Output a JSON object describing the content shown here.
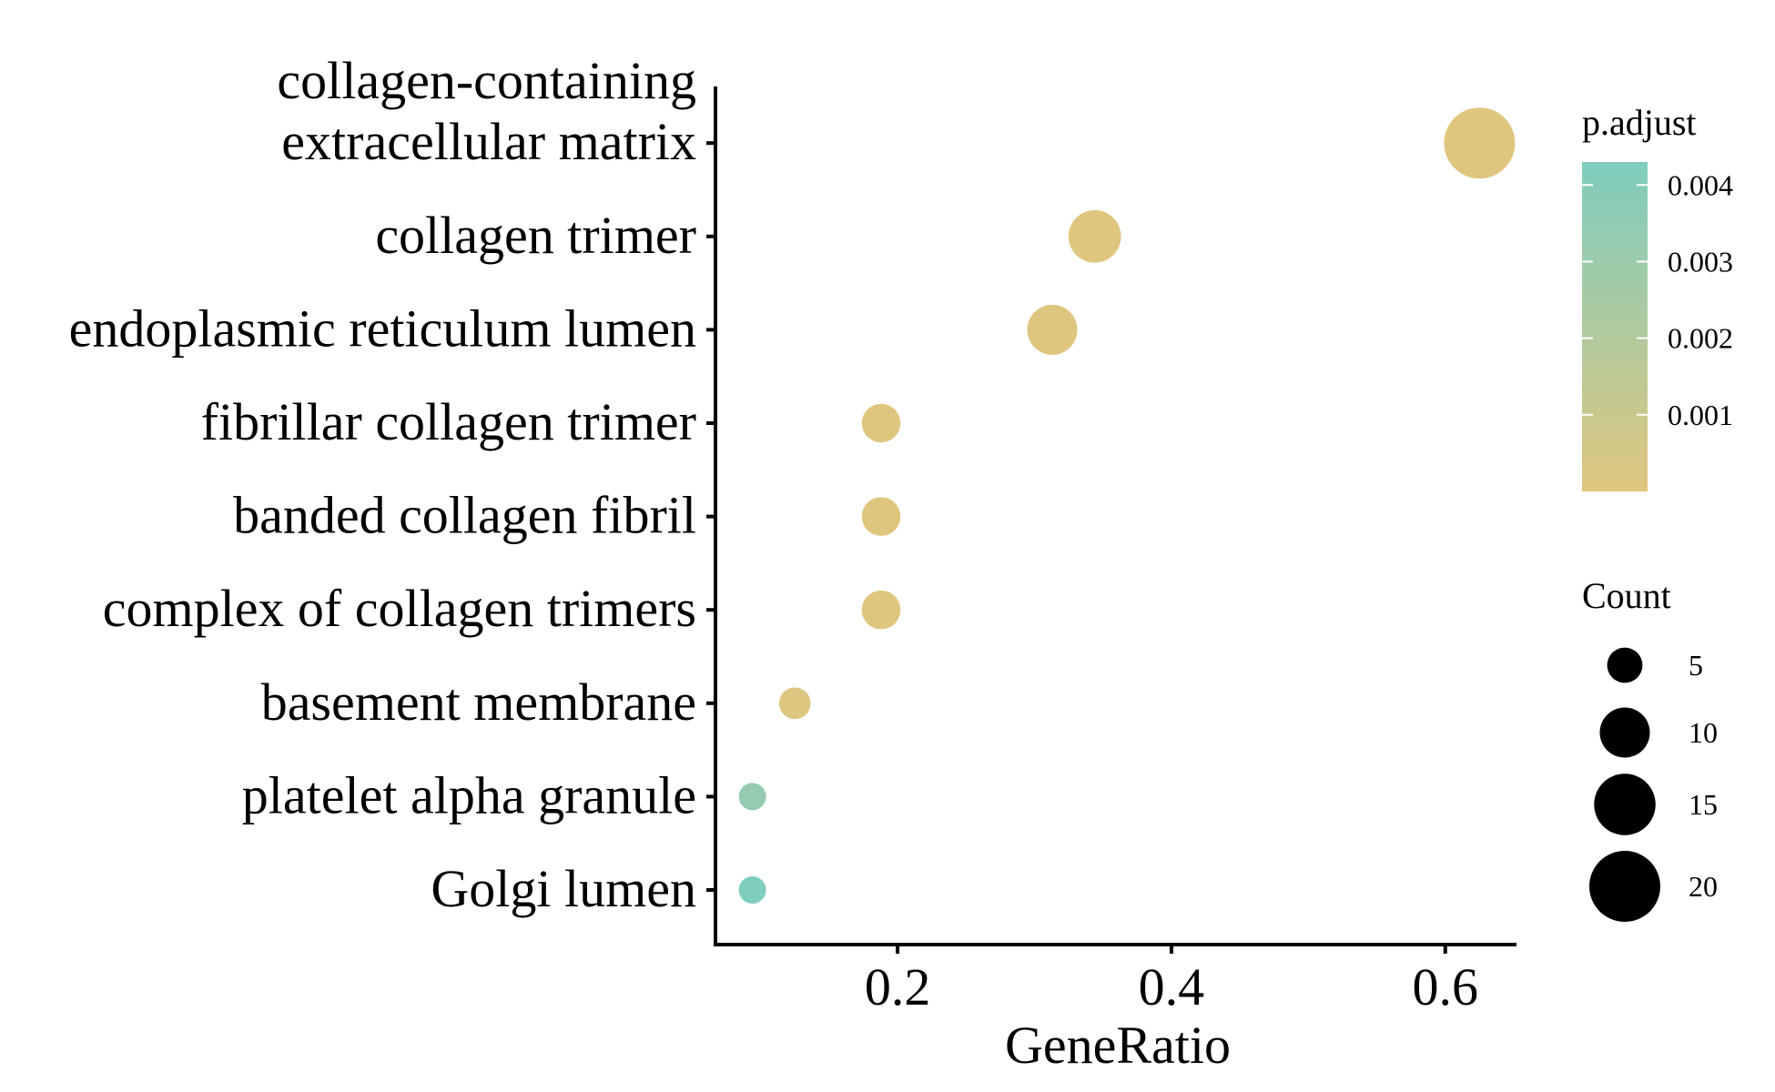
{
  "chart_data": {
    "type": "scatter",
    "title": "",
    "xlabel": "GeneRatio",
    "ylabel": "",
    "xlim": [
      0.067,
      0.652
    ],
    "xticks": [
      "0.2",
      "0.4",
      "0.6"
    ],
    "categories": [
      "Golgi lumen",
      "platelet alpha granule",
      "basement membrane",
      "complex of collagen trimers",
      "banded collagen fibril",
      "fibrillar collagen trimer",
      "endoplasmic reticulum lumen",
      "collagen trimer",
      "collagen-containing extracellular matrix"
    ],
    "category_lines": [
      [
        "Golgi lumen"
      ],
      [
        "platelet alpha granule"
      ],
      [
        "basement membrane"
      ],
      [
        "complex of collagen trimers"
      ],
      [
        "banded collagen fibril"
      ],
      [
        "fibrillar collagen trimer"
      ],
      [
        "endoplasmic reticulum lumen"
      ],
      [
        "collagen trimer"
      ],
      [
        "collagen-containing",
        "extracellular matrix"
      ]
    ],
    "points": [
      {
        "term": "Golgi lumen",
        "gene_ratio": 0.094,
        "count": 3,
        "p_adjust": 0.0043
      },
      {
        "term": "platelet alpha granule",
        "gene_ratio": 0.094,
        "count": 3,
        "p_adjust": 0.0033
      },
      {
        "term": "basement membrane",
        "gene_ratio": 0.125,
        "count": 4,
        "p_adjust": 0.00015
      },
      {
        "term": "complex of collagen trimers",
        "gene_ratio": 0.188,
        "count": 6,
        "p_adjust": 2e-05
      },
      {
        "term": "banded collagen fibril",
        "gene_ratio": 0.188,
        "count": 6,
        "p_adjust": 2e-05
      },
      {
        "term": "fibrillar collagen trimer",
        "gene_ratio": 0.188,
        "count": 6,
        "p_adjust": 2e-05
      },
      {
        "term": "endoplasmic reticulum lumen",
        "gene_ratio": 0.313,
        "count": 10,
        "p_adjust": 1e-05
      },
      {
        "term": "collagen trimer",
        "gene_ratio": 0.344,
        "count": 11,
        "p_adjust": 0.0
      },
      {
        "term": "collagen-containing extracellular matrix",
        "gene_ratio": 0.625,
        "count": 20,
        "p_adjust": 0.0
      }
    ],
    "color_legend": {
      "title": "p.adjust",
      "ticks": [
        "0.004",
        "0.003",
        "0.002",
        "0.001"
      ],
      "tick_values": [
        0.004,
        0.003,
        0.002,
        0.001
      ],
      "range": [
        0.0,
        0.0043
      ],
      "low_color": "#DFC67E",
      "high_color": "#7ECDBE"
    },
    "size_legend": {
      "title": "Count",
      "labels": [
        "5",
        "10",
        "15",
        "20"
      ],
      "values": [
        5,
        10,
        15,
        20
      ],
      "marker_color": "#000000"
    },
    "size_range": [
      3,
      20
    ],
    "legend_position": "right",
    "grid": false
  }
}
